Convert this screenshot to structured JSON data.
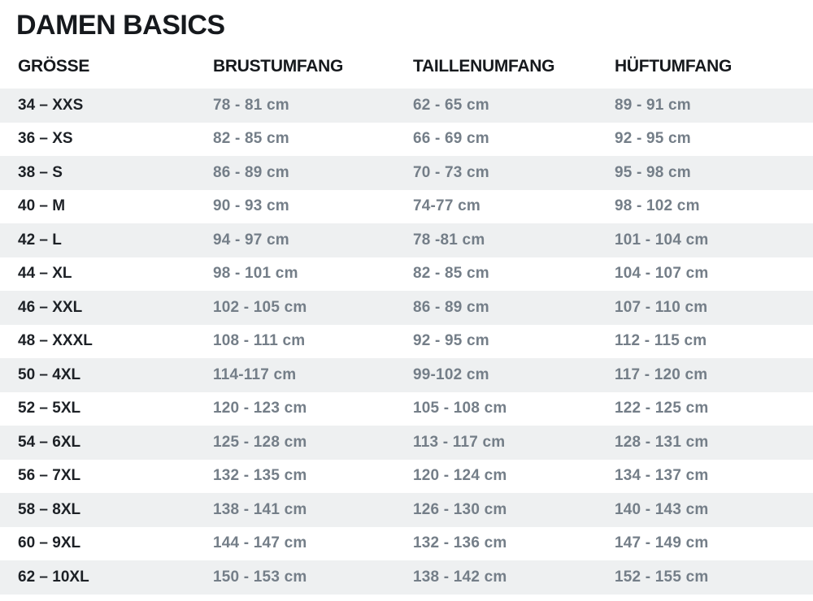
{
  "page": {
    "title": "DAMEN BASICS"
  },
  "colors": {
    "heading_text": "#16191d",
    "size_text": "#1d2126",
    "value_text": "#747e88",
    "row_alt_background": "#eef0f1",
    "page_background": "#ffffff"
  },
  "chart_data": {
    "type": "table",
    "title": "DAMEN BASICS",
    "columns": [
      "GRÖSSE",
      "BRUSTUMFANG",
      "TAILLENUMFANG",
      "HÜFTUMFANG"
    ],
    "layout": {
      "row_striping": "odd rows light gray, even rows white",
      "unit": "cm"
    },
    "rows": [
      {
        "size": "34 – XXS",
        "brustumfang": "78 - 81 cm",
        "taillenumfang": "62 - 65 cm",
        "hueftumfang": "89 - 91 cm"
      },
      {
        "size": "36 – XS",
        "brustumfang": "82 - 85 cm",
        "taillenumfang": "66 - 69 cm",
        "hueftumfang": "92 - 95 cm"
      },
      {
        "size": "38 – S",
        "brustumfang": "86 - 89 cm",
        "taillenumfang": "70 - 73 cm",
        "hueftumfang": "95 - 98 cm"
      },
      {
        "size": "40 – M",
        "brustumfang": "90 - 93 cm",
        "taillenumfang": "74-77 cm",
        "hueftumfang": "98 - 102 cm"
      },
      {
        "size": "42 – L",
        "brustumfang": "94 - 97 cm",
        "taillenumfang": "78 -81 cm",
        "hueftumfang": "101 - 104 cm"
      },
      {
        "size": "44 – XL",
        "brustumfang": "98 - 101 cm",
        "taillenumfang": "82 - 85 cm",
        "hueftumfang": "104 - 107 cm"
      },
      {
        "size": "46 – XXL",
        "brustumfang": "102 - 105 cm",
        "taillenumfang": "86 - 89 cm",
        "hueftumfang": "107 - 110 cm"
      },
      {
        "size": "48 – XXXL",
        "brustumfang": "108 - 111 cm",
        "taillenumfang": "92 - 95 cm",
        "hueftumfang": "112 - 115 cm"
      },
      {
        "size": "50 – 4XL",
        "brustumfang": "114-117 cm",
        "taillenumfang": "99-102 cm",
        "hueftumfang": "117 - 120 cm"
      },
      {
        "size": "52 – 5XL",
        "brustumfang": "120 - 123 cm",
        "taillenumfang": "105 - 108 cm",
        "hueftumfang": "122 - 125 cm"
      },
      {
        "size": "54 – 6XL",
        "brustumfang": "125 - 128 cm",
        "taillenumfang": "113 - 117 cm",
        "hueftumfang": "128 - 131 cm"
      },
      {
        "size": "56 – 7XL",
        "brustumfang": "132 - 135 cm",
        "taillenumfang": "120 - 124 cm",
        "hueftumfang": "134 - 137 cm"
      },
      {
        "size": "58 – 8XL",
        "brustumfang": "138 - 141 cm",
        "taillenumfang": "126 - 130 cm",
        "hueftumfang": "140 - 143 cm"
      },
      {
        "size": "60 – 9XL",
        "brustumfang": "144 - 147 cm",
        "taillenumfang": "132 - 136 cm",
        "hueftumfang": "147 - 149 cm"
      },
      {
        "size": "62 – 10XL",
        "brustumfang": "150 - 153 cm",
        "taillenumfang": "138 - 142 cm",
        "hueftumfang": "152 - 155 cm"
      }
    ]
  }
}
